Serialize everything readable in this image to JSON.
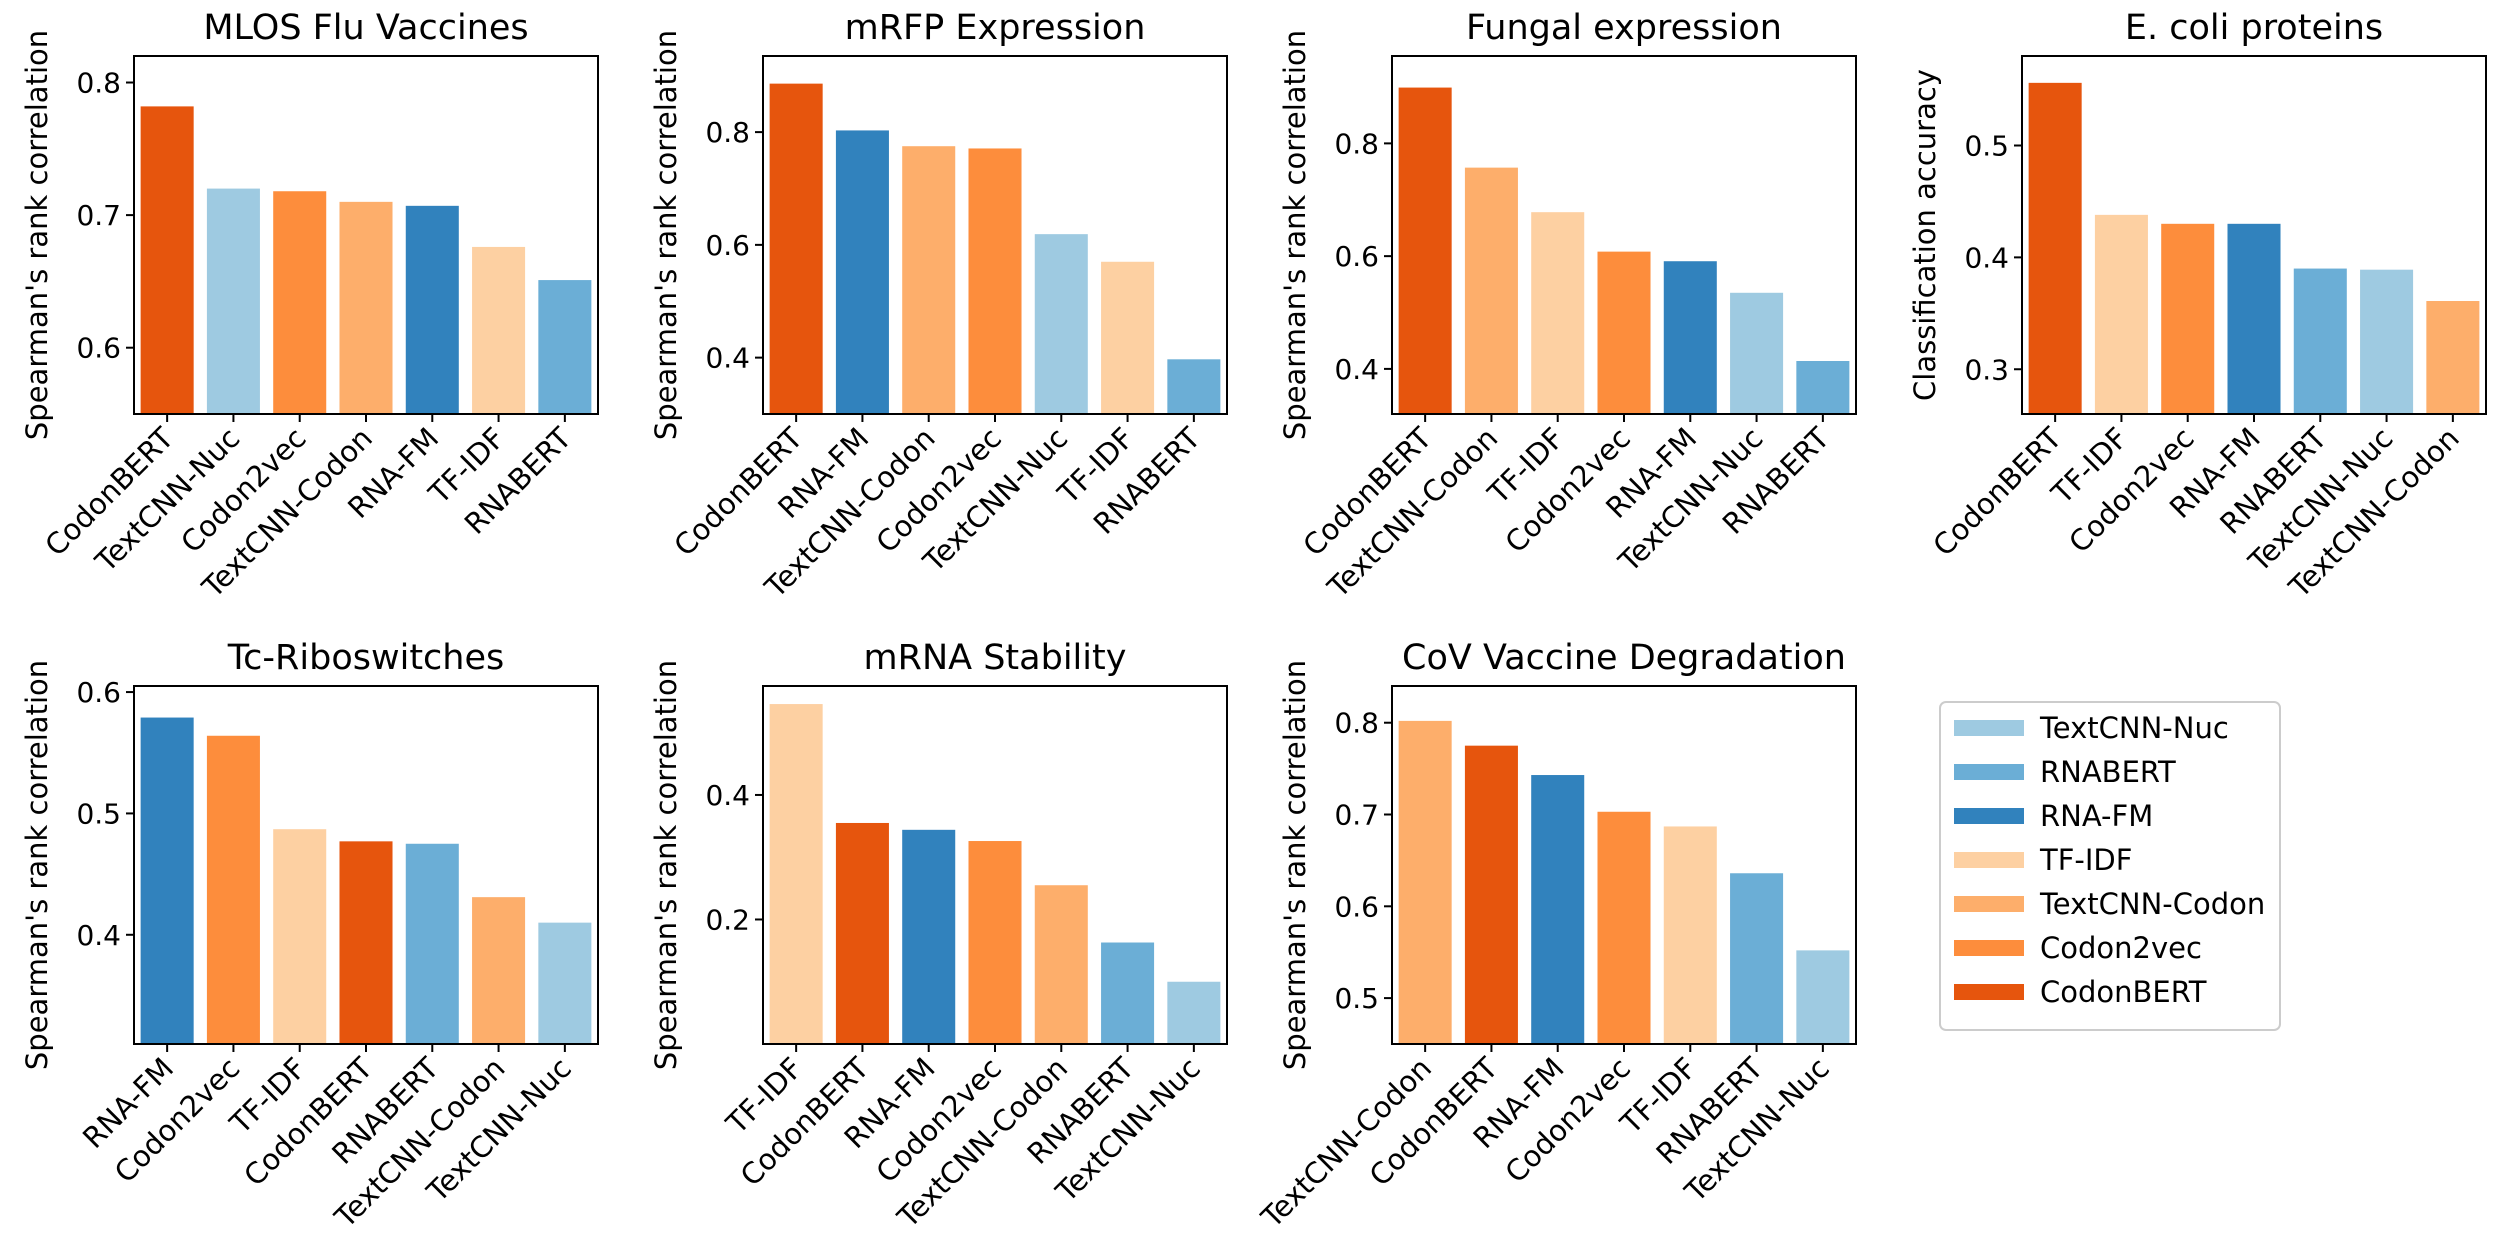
{
  "chart_data": [
    {
      "type": "bar",
      "title": "MLOS Flu Vaccines",
      "ylabel": "Spearman's rank correlation",
      "categories": [
        "CodonBERT",
        "TextCNN-Nuc",
        "Codon2vec",
        "TextCNN-Codon",
        "RNA-FM",
        "TF-IDF",
        "RNABERT"
      ],
      "values": [
        0.782,
        0.72,
        0.718,
        0.71,
        0.707,
        0.676,
        0.651
      ],
      "ylim": [
        0.55,
        0.82
      ],
      "yticks": [
        0.6,
        0.7,
        0.8
      ],
      "ytick_labels": [
        "0.6",
        "0.7",
        "0.8"
      ]
    },
    {
      "type": "bar",
      "title": "mRFP Expression",
      "ylabel": "Spearman's rank correlation",
      "categories": [
        "CodonBERT",
        "RNA-FM",
        "TextCNN-Codon",
        "Codon2vec",
        "TextCNN-Nuc",
        "TF-IDF",
        "RNABERT"
      ],
      "values": [
        0.886,
        0.803,
        0.775,
        0.771,
        0.619,
        0.57,
        0.397
      ],
      "ylim": [
        0.3,
        0.935
      ],
      "yticks": [
        0.4,
        0.6,
        0.8
      ],
      "ytick_labels": [
        "0.4",
        "0.6",
        "0.8"
      ]
    },
    {
      "type": "bar",
      "title": "Fungal expression",
      "ylabel": "Spearman's rank correlation",
      "categories": [
        "CodonBERT",
        "TextCNN-Codon",
        "TF-IDF",
        "Codon2vec",
        "RNA-FM",
        "TextCNN-Nuc",
        "RNABERT"
      ],
      "values": [
        0.899,
        0.757,
        0.678,
        0.608,
        0.591,
        0.535,
        0.414
      ],
      "ylim": [
        0.32,
        0.955
      ],
      "yticks": [
        0.4,
        0.6,
        0.8
      ],
      "ytick_labels": [
        "0.4",
        "0.6",
        "0.8"
      ]
    },
    {
      "type": "bar",
      "title": "E. coli proteins",
      "ylabel": "Classification accuracy",
      "categories": [
        "CodonBERT",
        "TF-IDF",
        "Codon2vec",
        "RNA-FM",
        "RNABERT",
        "TextCNN-Nuc",
        "TextCNN-Codon"
      ],
      "values": [
        0.556,
        0.438,
        0.43,
        0.43,
        0.39,
        0.389,
        0.361
      ],
      "ylim": [
        0.26,
        0.58
      ],
      "yticks": [
        0.3,
        0.4,
        0.5
      ],
      "ytick_labels": [
        "0.3",
        "0.4",
        "0.5"
      ]
    },
    {
      "type": "bar",
      "title": "Tc-Riboswitches",
      "ylabel": "Spearman's rank correlation",
      "categories": [
        "RNA-FM",
        "Codon2vec",
        "TF-IDF",
        "CodonBERT",
        "RNABERT",
        "TextCNN-Codon",
        "TextCNN-Nuc"
      ],
      "values": [
        0.579,
        0.564,
        0.487,
        0.477,
        0.475,
        0.431,
        0.41
      ],
      "ylim": [
        0.31,
        0.605
      ],
      "yticks": [
        0.4,
        0.5,
        0.6
      ],
      "ytick_labels": [
        "0.4",
        "0.5",
        "0.6"
      ]
    },
    {
      "type": "bar",
      "title": "mRNA Stability",
      "ylabel": "Spearman's rank correlation",
      "categories": [
        "TF-IDF",
        "CodonBERT",
        "RNA-FM",
        "Codon2vec",
        "TextCNN-Codon",
        "RNABERT",
        "TextCNN-Nuc"
      ],
      "values": [
        0.546,
        0.355,
        0.344,
        0.326,
        0.255,
        0.163,
        0.1
      ],
      "ylim": [
        0.0,
        0.575
      ],
      "yticks": [
        0.2,
        0.4
      ],
      "ytick_labels": [
        "0.2",
        "0.4"
      ]
    },
    {
      "type": "bar",
      "title": "CoV Vaccine Degradation",
      "ylabel": "Spearman's rank correlation",
      "categories": [
        "TextCNN-Codon",
        "CodonBERT",
        "RNA-FM",
        "Codon2vec",
        "TF-IDF",
        "RNABERT",
        "TextCNN-Nuc"
      ],
      "values": [
        0.802,
        0.775,
        0.743,
        0.703,
        0.687,
        0.636,
        0.552
      ],
      "ylim": [
        0.45,
        0.84
      ],
      "yticks": [
        0.5,
        0.6,
        0.7,
        0.8
      ],
      "ytick_labels": [
        "0.5",
        "0.6",
        "0.7",
        "0.8"
      ]
    }
  ],
  "legend": {
    "placement": "bottom-right",
    "entries": [
      {
        "name": "TextCNN-Nuc",
        "color": "#9ecae1"
      },
      {
        "name": "RNABERT",
        "color": "#6baed6"
      },
      {
        "name": "RNA-FM",
        "color": "#3182bd"
      },
      {
        "name": "TF-IDF",
        "color": "#fdd0a2"
      },
      {
        "name": "TextCNN-Codon",
        "color": "#fdae6b"
      },
      {
        "name": "Codon2vec",
        "color": "#fd8d3c"
      },
      {
        "name": "CodonBERT",
        "color": "#e6550d"
      }
    ]
  }
}
